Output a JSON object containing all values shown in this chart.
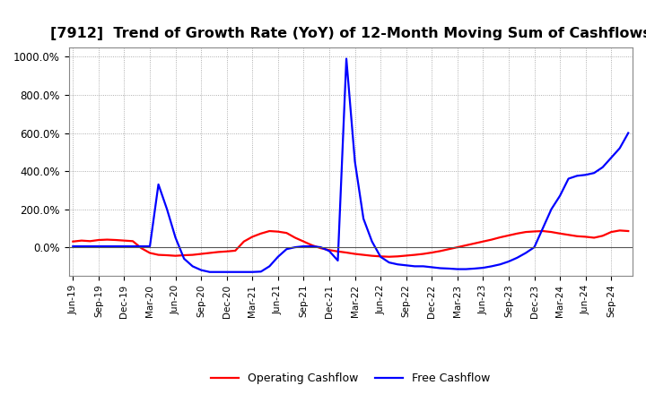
{
  "title": "[7912]  Trend of Growth Rate (YoY) of 12-Month Moving Sum of Cashflows",
  "title_fontsize": 11.5,
  "ylim": [
    -150,
    1050
  ],
  "yticks": [
    0,
    200,
    400,
    600,
    800,
    1000
  ],
  "ytick_labels": [
    "0.0%",
    "200.0%",
    "400.0%",
    "600.0%",
    "800.0%",
    "1000.0%"
  ],
  "legend_labels": [
    "Operating Cashflow",
    "Free Cashflow"
  ],
  "legend_colors": [
    "#ff0000",
    "#0000ff"
  ],
  "x_labels": [
    "Jun-19",
    "Sep-19",
    "Dec-19",
    "Mar-20",
    "Jun-20",
    "Sep-20",
    "Dec-20",
    "Mar-21",
    "Jun-21",
    "Sep-21",
    "Dec-21",
    "Mar-22",
    "Jun-22",
    "Sep-22",
    "Dec-22",
    "Mar-23",
    "Jun-23",
    "Sep-23",
    "Dec-23",
    "Mar-24",
    "Jun-24",
    "Sep-24"
  ],
  "background_color": "#ffffff",
  "grid_color": "#999999",
  "line_width": 1.6,
  "operating_cashflow": [
    30,
    35,
    32,
    38,
    40,
    38,
    35,
    32,
    -5,
    -30,
    -40,
    -42,
    -45,
    -42,
    -40,
    -35,
    -30,
    -25,
    -22,
    -18,
    30,
    55,
    72,
    85,
    82,
    75,
    50,
    30,
    10,
    -5,
    -15,
    -22,
    -28,
    -35,
    -40,
    -45,
    -48,
    -50,
    -48,
    -44,
    -40,
    -35,
    -28,
    -20,
    -10,
    0,
    10,
    20,
    30,
    40,
    52,
    62,
    72,
    80,
    83,
    85,
    80,
    72,
    65,
    58,
    55,
    50,
    60,
    80,
    88,
    85
  ],
  "free_cashflow": [
    5,
    5,
    5,
    5,
    5,
    5,
    5,
    5,
    5,
    5,
    330,
    200,
    50,
    -60,
    -100,
    -120,
    -130,
    -130,
    -130,
    -130,
    -130,
    -130,
    -128,
    -100,
    -50,
    -10,
    0,
    5,
    5,
    0,
    -20,
    -70,
    990,
    450,
    150,
    30,
    -50,
    -80,
    -90,
    -95,
    -100,
    -100,
    -105,
    -110,
    -112,
    -115,
    -115,
    -112,
    -108,
    -100,
    -90,
    -75,
    -55,
    -30,
    0,
    100,
    200,
    270,
    360,
    375,
    380,
    390,
    420,
    470,
    520,
    600
  ]
}
